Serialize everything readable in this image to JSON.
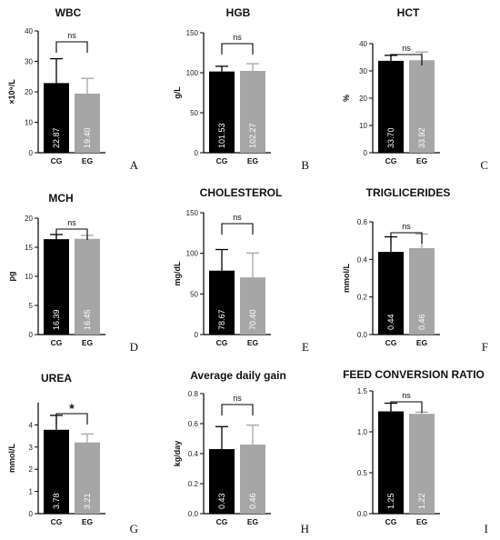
{
  "chart_data": [
    {
      "type": "bar",
      "panel": "A",
      "title": "WBC",
      "ylabel": "×10⁹/L",
      "categories": [
        "CG",
        "EG"
      ],
      "values": [
        22.87,
        19.4
      ],
      "errors": [
        8.0,
        5.0
      ],
      "data_labels": [
        "22.87",
        "19.40"
      ],
      "colors": [
        "#000000",
        "#a6a6a6"
      ],
      "ylim": [
        0,
        40
      ],
      "yticks": [
        0,
        10,
        20,
        30,
        40
      ],
      "ytick_labels": [
        "0",
        "10",
        "20",
        "30",
        "40"
      ],
      "significance": "ns"
    },
    {
      "type": "bar",
      "panel": "B",
      "title": "HGB",
      "ylabel": "g/L",
      "categories": [
        "CG",
        "EG"
      ],
      "values": [
        101.53,
        102.27
      ],
      "errors": [
        6.5,
        9.0
      ],
      "data_labels": [
        "101.53",
        "102.27"
      ],
      "colors": [
        "#000000",
        "#a6a6a6"
      ],
      "ylim": [
        0,
        150
      ],
      "yticks": [
        0,
        50,
        100,
        150
      ],
      "ytick_labels": [
        "0",
        "50",
        "100",
        "150"
      ],
      "significance": "ns"
    },
    {
      "type": "bar",
      "panel": "C",
      "title": "HCT",
      "ylabel": "%",
      "categories": [
        "CG",
        "EG"
      ],
      "values": [
        33.7,
        33.92
      ],
      "errors": [
        2.0,
        3.0
      ],
      "data_labels": [
        "33.70",
        "33.92"
      ],
      "colors": [
        "#000000",
        "#a6a6a6"
      ],
      "ylim": [
        0,
        40
      ],
      "yticks": [
        0,
        10,
        20,
        30,
        40
      ],
      "ytick_labels": [
        "0",
        "10",
        "20",
        "30",
        "40"
      ],
      "significance": "ns"
    },
    {
      "type": "bar",
      "panel": "D",
      "title": "MCH",
      "ylabel": "pg",
      "categories": [
        "CG",
        "EG"
      ],
      "values": [
        16.39,
        16.45
      ],
      "errors": [
        0.8,
        0.6
      ],
      "data_labels": [
        "16.39",
        "16.45"
      ],
      "colors": [
        "#000000",
        "#a6a6a6"
      ],
      "ylim": [
        0,
        20
      ],
      "yticks": [
        0,
        5,
        10,
        15,
        20
      ],
      "ytick_labels": [
        "0",
        "5",
        "10",
        "15",
        "20"
      ],
      "significance": "ns"
    },
    {
      "type": "bar",
      "panel": "E",
      "title": "CHOLESTEROL",
      "ylabel": "mg/dL",
      "categories": [
        "CG",
        "EG"
      ],
      "values": [
        78.67,
        70.4
      ],
      "errors": [
        26.0,
        30.0
      ],
      "data_labels": [
        "78.67",
        "70.40"
      ],
      "colors": [
        "#000000",
        "#a6a6a6"
      ],
      "ylim": [
        0,
        150
      ],
      "yticks": [
        0,
        50,
        100,
        150
      ],
      "ytick_labels": [
        "0",
        "50",
        "100",
        "150"
      ],
      "significance": "ns"
    },
    {
      "type": "bar",
      "panel": "F",
      "title": "TRIGLICERIDES",
      "ylabel": "mmol/L",
      "categories": [
        "CG",
        "EG"
      ],
      "values": [
        0.44,
        0.46
      ],
      "errors": [
        0.08,
        0.075
      ],
      "data_labels": [
        "0.44",
        "0.46"
      ],
      "colors": [
        "#000000",
        "#a6a6a6"
      ],
      "ylim": [
        0,
        0.6
      ],
      "yticks": [
        0,
        0.2,
        0.4,
        0.6
      ],
      "ytick_labels": [
        "0.0",
        "0.2",
        "0.4",
        "0.6"
      ],
      "significance": "ns"
    },
    {
      "type": "bar",
      "panel": "G",
      "title": "UREA",
      "ylabel": "mmol/L",
      "categories": [
        "CG",
        "EG"
      ],
      "values": [
        3.78,
        3.21
      ],
      "errors": [
        0.65,
        0.38
      ],
      "data_labels": [
        "3.78",
        "3.21"
      ],
      "colors": [
        "#000000",
        "#a6a6a6"
      ],
      "ylim": [
        0,
        5
      ],
      "yticks": [
        0,
        1,
        2,
        3,
        4
      ],
      "ytick_labels": [
        "0",
        "1",
        "2",
        "3",
        "4"
      ],
      "significance": "*"
    },
    {
      "type": "bar",
      "panel": "H",
      "title": "Average daily gain",
      "ylabel": "kg/day",
      "categories": [
        "CG",
        "EG"
      ],
      "values": [
        0.43,
        0.46
      ],
      "errors": [
        0.15,
        0.13
      ],
      "data_labels": [
        "0.43",
        "0.46"
      ],
      "colors": [
        "#000000",
        "#a6a6a6"
      ],
      "ylim": [
        0,
        0.8
      ],
      "yticks": [
        0,
        0.2,
        0.4,
        0.6,
        0.8
      ],
      "ytick_labels": [
        "0.0",
        "0.2",
        "0.4",
        "0.6",
        "0.8"
      ],
      "significance": "ns"
    },
    {
      "type": "bar",
      "panel": "I",
      "title": "FEED CONVERSION RATIO",
      "ylabel": "",
      "categories": [
        "CG",
        "EG"
      ],
      "values": [
        1.25,
        1.22
      ],
      "errors": [
        0.1,
        0.02
      ],
      "data_labels": [
        "1.25",
        "1.22"
      ],
      "colors": [
        "#000000",
        "#a6a6a6"
      ],
      "ylim": [
        0,
        1.5
      ],
      "yticks": [
        0,
        0.5,
        1.0,
        1.5
      ],
      "ytick_labels": [
        "0.0",
        "0.5",
        "1.0",
        "1.5"
      ],
      "significance": "ns"
    }
  ]
}
